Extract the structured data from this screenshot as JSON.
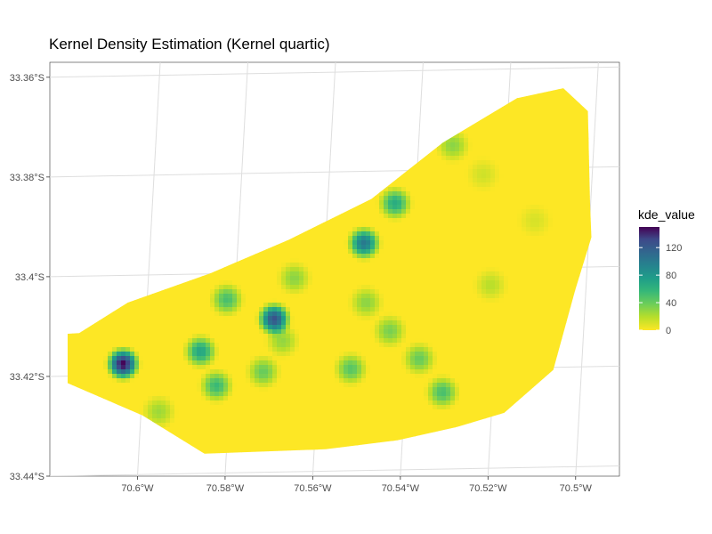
{
  "chart_data": {
    "type": "heatmap",
    "title": "Kernel Density Estimation (Kernel quartic)",
    "xlabel": "",
    "ylabel": "",
    "x_ticks": [
      "70.6°W",
      "70.58°W",
      "70.56°W",
      "70.54°W",
      "70.52°W",
      "70.5°W"
    ],
    "x_tick_values": [
      -70.6,
      -70.58,
      -70.56,
      -70.54,
      -70.52,
      -70.5
    ],
    "y_ticks": [
      "33.36°S",
      "33.38°S",
      "33.4°S",
      "33.42°S",
      "33.44°S"
    ],
    "y_tick_values": [
      -33.36,
      -33.38,
      -33.4,
      -33.42,
      -33.44
    ],
    "xlim": [
      -70.62,
      -70.49
    ],
    "ylim": [
      -33.44,
      -33.357
    ],
    "grid": true,
    "colormap": "viridis",
    "legend": {
      "title": "kde_value",
      "position": "right",
      "ticks": [
        0,
        40,
        80,
        120
      ],
      "range": [
        0,
        150
      ]
    },
    "boundary": [
      [
        -70.6133,
        -33.4113
      ],
      [
        -70.6022,
        -33.4052
      ],
      [
        -70.5833,
        -33.3993
      ],
      [
        -70.5655,
        -33.3926
      ],
      [
        -70.5466,
        -33.3844
      ],
      [
        -70.5303,
        -33.3731
      ],
      [
        -70.5134,
        -33.3642
      ],
      [
        -70.5028,
        -33.3622
      ],
      [
        -70.4972,
        -33.3668
      ],
      [
        -70.4967,
        -33.3855
      ],
      [
        -70.4964,
        -33.3921
      ],
      [
        -70.5001,
        -33.4027
      ],
      [
        -70.5051,
        -33.4187
      ],
      [
        -70.5163,
        -33.4273
      ],
      [
        -70.5269,
        -33.4301
      ],
      [
        -70.5406,
        -33.4328
      ],
      [
        -70.5571,
        -33.4346
      ],
      [
        -70.5847,
        -33.4355
      ],
      [
        -70.5989,
        -33.4278
      ],
      [
        -70.6174,
        -33.4208
      ],
      [
        -70.6235,
        -33.4173
      ],
      [
        -70.6223,
        -33.4118
      ]
    ],
    "hotspots": [
      {
        "lon": -70.6033,
        "lat": -33.4175,
        "value": 150
      },
      {
        "lon": -70.5688,
        "lat": -33.4085,
        "value": 125
      },
      {
        "lon": -70.5483,
        "lat": -33.3933,
        "value": 100
      },
      {
        "lon": -70.5856,
        "lat": -33.415,
        "value": 70
      },
      {
        "lon": -70.5412,
        "lat": -33.3853,
        "value": 65
      },
      {
        "lon": -70.5796,
        "lat": -33.4046,
        "value": 50
      },
      {
        "lon": -70.582,
        "lat": -33.4219,
        "value": 55
      },
      {
        "lon": -70.5304,
        "lat": -33.4232,
        "value": 50
      },
      {
        "lon": -70.5513,
        "lat": -33.4185,
        "value": 45
      },
      {
        "lon": -70.5713,
        "lat": -33.4191,
        "value": 40
      },
      {
        "lon": -70.5357,
        "lat": -33.4165,
        "value": 40
      },
      {
        "lon": -70.5424,
        "lat": -33.4109,
        "value": 35
      },
      {
        "lon": -70.5642,
        "lat": -33.4003,
        "value": 30
      },
      {
        "lon": -70.528,
        "lat": -33.3737,
        "value": 30
      },
      {
        "lon": -70.5478,
        "lat": -33.4052,
        "value": 30
      },
      {
        "lon": -70.5951,
        "lat": -33.4271,
        "value": 25
      },
      {
        "lon": -70.5669,
        "lat": -33.4129,
        "value": 28
      },
      {
        "lon": -70.5194,
        "lat": -33.4017,
        "value": 18
      },
      {
        "lon": -70.5093,
        "lat": -33.3888,
        "value": 10
      },
      {
        "lon": -70.5211,
        "lat": -33.3795,
        "value": 12
      }
    ]
  }
}
